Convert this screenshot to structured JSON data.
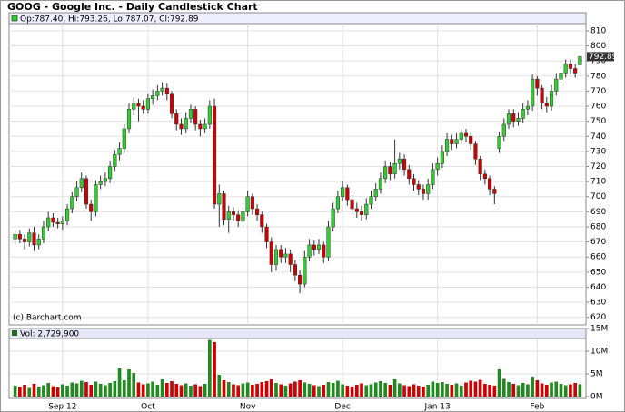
{
  "chart_data": {
    "type": "candlestick",
    "title": "GOOG - Google Inc. - Daily Candlestick Chart",
    "ohlc_label": "Op:787.40, Hi:793.26, Lo:787.07, Cl:792.89",
    "watermark": "(c) Barchart.com",
    "volume_label": "Vol: 2,729,900",
    "up_color": "#33cc33",
    "down_color": "#cc0000",
    "categories": [
      null,
      null,
      null,
      null,
      null,
      null,
      null,
      null,
      null,
      null,
      "Sep 12",
      null,
      null,
      null,
      null,
      null,
      null,
      null,
      null,
      null,
      null,
      null,
      null,
      null,
      null,
      null,
      null,
      null,
      "Oct",
      null,
      null,
      null,
      null,
      null,
      null,
      null,
      null,
      null,
      null,
      null,
      null,
      null,
      null,
      null,
      null,
      null,
      null,
      null,
      null,
      "Nov",
      null,
      null,
      null,
      null,
      null,
      null,
      null,
      null,
      null,
      null,
      null,
      null,
      null,
      null,
      null,
      null,
      null,
      null,
      null,
      "Dec",
      null,
      null,
      null,
      null,
      null,
      null,
      null,
      null,
      null,
      null,
      null,
      null,
      null,
      null,
      null,
      null,
      null,
      null,
      null,
      "Jan 13",
      null,
      null,
      null,
      null,
      null,
      null,
      null,
      null,
      null,
      null,
      null,
      null,
      null,
      null,
      null,
      null,
      null,
      null,
      null,
      null,
      "Feb",
      null,
      null,
      null,
      null,
      null,
      null,
      null,
      null,
      null
    ],
    "open": [
      672,
      675,
      672,
      670,
      676,
      668,
      672,
      680,
      686,
      683,
      682,
      684,
      692,
      700,
      706,
      712,
      695,
      690,
      708,
      710,
      712,
      720,
      728,
      732,
      745,
      758,
      762,
      760,
      758,
      765,
      767,
      770,
      772,
      768,
      755,
      748,
      745,
      752,
      758,
      748,
      745,
      748,
      760,
      695,
      702,
      685,
      690,
      688,
      684,
      690,
      700,
      692,
      688,
      680,
      670,
      655,
      665,
      660,
      662,
      655,
      648,
      642,
      660,
      668,
      665,
      668,
      660,
      680,
      692,
      700,
      706,
      698,
      692,
      690,
      688,
      695,
      700,
      705,
      712,
      720,
      715,
      722,
      725,
      718,
      712,
      708,
      705,
      702,
      708,
      718,
      722,
      730,
      738,
      735,
      738,
      742,
      740,
      735,
      725,
      715,
      712,
      705,
      732,
      740,
      748,
      755,
      750,
      752,
      758,
      760,
      778,
      772,
      762,
      760,
      770,
      778,
      782,
      788,
      785,
      787.4
    ],
    "high": [
      678,
      678,
      675,
      679,
      680,
      675,
      684,
      690,
      689,
      686,
      687,
      695,
      703,
      710,
      716,
      714,
      698,
      711,
      714,
      716,
      724,
      731,
      736,
      748,
      762,
      766,
      765,
      764,
      768,
      771,
      774,
      776,
      775,
      770,
      758,
      752,
      756,
      761,
      760,
      751,
      752,
      764,
      765,
      708,
      704,
      694,
      693,
      691,
      693,
      704,
      702,
      695,
      690,
      682,
      673,
      668,
      668,
      666,
      665,
      658,
      651,
      664,
      672,
      671,
      672,
      670,
      684,
      696,
      704,
      710,
      708,
      701,
      696,
      694,
      699,
      704,
      709,
      716,
      724,
      723,
      738,
      729,
      728,
      721,
      715,
      711,
      708,
      712,
      722,
      726,
      734,
      742,
      741,
      742,
      745,
      745,
      743,
      737,
      727,
      718,
      714,
      707,
      743,
      752,
      758,
      758,
      756,
      762,
      764,
      781,
      780,
      774,
      766,
      774,
      782,
      786,
      791,
      791,
      788,
      793.26
    ],
    "low": [
      668,
      669,
      665,
      667,
      664,
      665,
      669,
      677,
      680,
      679,
      678,
      681,
      689,
      697,
      703,
      692,
      684,
      687,
      705,
      707,
      709,
      717,
      724,
      729,
      742,
      754,
      750,
      755,
      755,
      761,
      764,
      767,
      764,
      752,
      744,
      741,
      742,
      749,
      744,
      740,
      742,
      745,
      692,
      680,
      681,
      676,
      684,
      680,
      681,
      687,
      688,
      684,
      676,
      666,
      650,
      651,
      656,
      656,
      650,
      644,
      636,
      640,
      657,
      661,
      662,
      656,
      657,
      677,
      689,
      697,
      694,
      688,
      686,
      684,
      685,
      692,
      697,
      702,
      709,
      711,
      712,
      718,
      714,
      708,
      704,
      701,
      698,
      698,
      705,
      714,
      719,
      727,
      731,
      732,
      735,
      736,
      731,
      721,
      711,
      708,
      701,
      695,
      729,
      737,
      745,
      746,
      747,
      749,
      754,
      757,
      767,
      758,
      756,
      757,
      767,
      775,
      779,
      781,
      779,
      787.07
    ],
    "close": [
      675,
      672,
      670,
      676,
      668,
      672,
      680,
      686,
      683,
      682,
      684,
      692,
      700,
      706,
      712,
      695,
      690,
      708,
      710,
      712,
      720,
      728,
      732,
      745,
      758,
      762,
      760,
      758,
      765,
      767,
      770,
      772,
      768,
      755,
      748,
      745,
      752,
      758,
      748,
      745,
      748,
      760,
      695,
      702,
      685,
      690,
      688,
      684,
      690,
      700,
      692,
      688,
      680,
      670,
      655,
      665,
      660,
      662,
      655,
      648,
      642,
      660,
      668,
      665,
      668,
      660,
      680,
      692,
      700,
      706,
      698,
      692,
      690,
      688,
      695,
      700,
      705,
      712,
      720,
      715,
      722,
      725,
      718,
      712,
      708,
      705,
      702,
      708,
      718,
      722,
      730,
      738,
      735,
      738,
      742,
      740,
      735,
      725,
      715,
      712,
      705,
      702,
      740,
      748,
      755,
      750,
      752,
      758,
      760,
      778,
      772,
      762,
      760,
      770,
      778,
      782,
      788,
      785,
      782,
      792.89
    ],
    "volume": [
      2400000,
      2100000,
      2600000,
      1900000,
      2800000,
      2200000,
      2500000,
      3000000,
      2300000,
      2000000,
      2700000,
      2400000,
      3100000,
      2900000,
      3500000,
      3200000,
      2600000,
      3300000,
      2800000,
      2500000,
      3000000,
      3400000,
      6300000,
      3600000,
      6000000,
      5200000,
      3100000,
      2700000,
      2900000,
      3300000,
      2600000,
      3800000,
      3000000,
      3400000,
      2800000,
      2500000,
      2900000,
      2400000,
      2700000,
      2300000,
      2800000,
      12500000,
      12000000,
      4800000,
      3600000,
      3200000,
      2700000,
      2500000,
      2900000,
      3100000,
      2600000,
      2800000,
      3200000,
      3400000,
      3800000,
      3000000,
      2700000,
      2400000,
      2900000,
      3300000,
      3600000,
      3100000,
      2800000,
      2500000,
      2300000,
      2600000,
      3200000,
      3000000,
      3500000,
      2700000,
      2400000,
      2200000,
      2600000,
      2900000,
      2500000,
      2700000,
      3100000,
      3400000,
      3000000,
      2600000,
      3800000,
      2900000,
      2500000,
      2300000,
      2700000,
      2400000,
      2200000,
      2600000,
      3300000,
      3000000,
      3200000,
      2800000,
      2600000,
      2900000,
      2400000,
      3100000,
      3500000,
      3300000,
      3700000,
      2800000,
      2600000,
      2400000,
      6000000,
      3900000,
      3200000,
      2800000,
      2500000,
      3000000,
      2700000,
      4400000,
      3600000,
      2900000,
      2600000,
      3100000,
      3300000,
      2800000,
      2500000,
      2700000,
      3000000,
      2729900
    ],
    "ylim": [
      615,
      822
    ],
    "yticks": [
      620,
      630,
      640,
      650,
      660,
      670,
      680,
      690,
      700,
      710,
      720,
      730,
      740,
      750,
      760,
      770,
      780,
      790,
      800,
      810
    ],
    "volume_ylim": [
      0,
      15000000
    ],
    "volume_yticks": [
      {
        "value": 0,
        "label": "0M"
      },
      {
        "value": 5000000,
        "label": "5M"
      },
      {
        "value": 10000000,
        "label": "10M"
      },
      {
        "value": 15000000,
        "label": "15M"
      }
    ],
    "grid": true
  }
}
